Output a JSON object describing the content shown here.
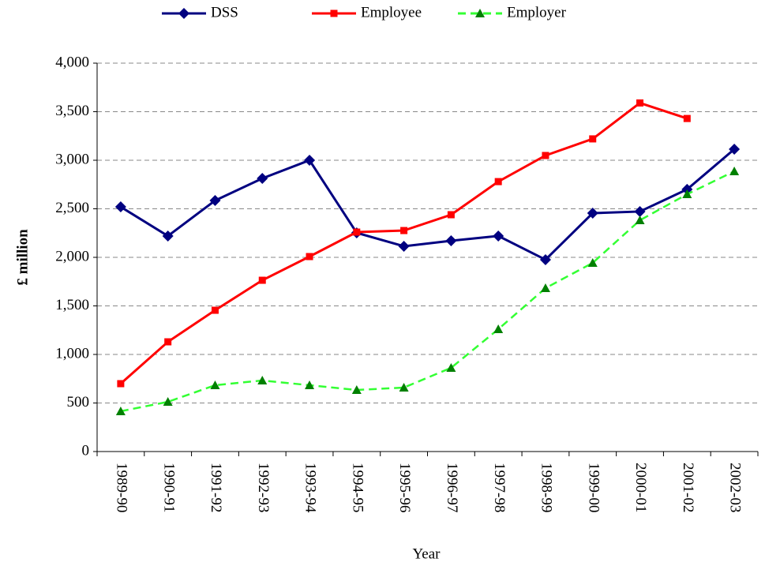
{
  "chart_data": {
    "type": "line",
    "x_label": "Year",
    "y_label": "£ million",
    "categories": [
      "1989-90",
      "1990-91",
      "1991-92",
      "1992-93",
      "1993-94",
      "1994-95",
      "1995-96",
      "1996-97",
      "1997-98",
      "1998-99",
      "1999-00",
      "2000-01",
      "2001-02",
      "2002-03"
    ],
    "series": [
      {
        "name": "DSS",
        "color": "#000080",
        "marker": "diamond",
        "dash": false,
        "values": [
          2520,
          2220,
          2585,
          2813,
          3000,
          2252,
          2114,
          2171,
          2220,
          1976,
          2455,
          2472,
          2700,
          3114
        ]
      },
      {
        "name": "Employee",
        "color": "#ff0000",
        "marker": "square",
        "dash": false,
        "values": [
          699,
          1130,
          1455,
          1764,
          2008,
          2260,
          2276,
          2439,
          2780,
          3049,
          3220,
          3590,
          3430,
          null
        ]
      },
      {
        "name": "Employer",
        "color": "#33ff33",
        "marker_color": "#008000",
        "marker": "triangle",
        "dash": true,
        "values": [
          415,
          512,
          683,
          732,
          683,
          634,
          659,
          862,
          1260,
          1683,
          1943,
          2382,
          2650,
          2886
        ]
      }
    ],
    "ylim": [
      0,
      4000
    ],
    "yticks": [
      0,
      500,
      {
        "value": 1000,
        "label": "1,000"
      },
      {
        "value": 1500,
        "label": "1,500"
      },
      {
        "value": 2000,
        "label": "2,000"
      },
      {
        "value": 2500,
        "label": "2,500"
      },
      {
        "value": 3000,
        "label": "3,000"
      },
      {
        "value": 3500,
        "label": "3,500"
      },
      {
        "value": 4000,
        "label": "4,000"
      }
    ],
    "grid": true,
    "legend": "top"
  }
}
